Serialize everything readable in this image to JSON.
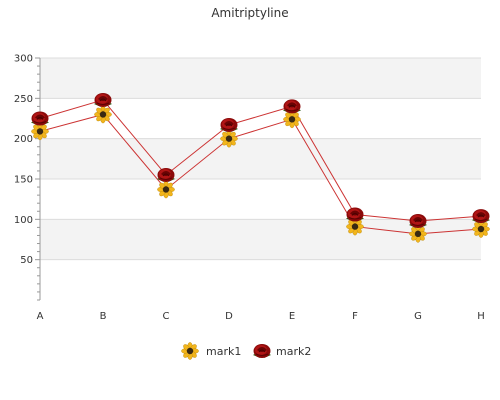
{
  "chart_data": {
    "type": "line",
    "title": "Amitriptyline",
    "xlabel": "",
    "ylabel": "",
    "categories": [
      "A",
      "B",
      "C",
      "D",
      "E",
      "F",
      "G",
      "H"
    ],
    "ylim": [
      0,
      300
    ],
    "yticks": [
      50,
      100,
      150,
      200,
      250,
      300
    ],
    "grid": true,
    "legend_position": "bottom",
    "series": [
      {
        "name": "mark1",
        "values": [
          209,
          230,
          137,
          200,
          224,
          91,
          82,
          88
        ],
        "color": "#cc3333",
        "marker": "sunflower-icon"
      },
      {
        "name": "mark2",
        "values": [
          225,
          248,
          155,
          217,
          240,
          106,
          98,
          104
        ],
        "color": "#cc3333",
        "marker": "rose-icon"
      }
    ]
  }
}
